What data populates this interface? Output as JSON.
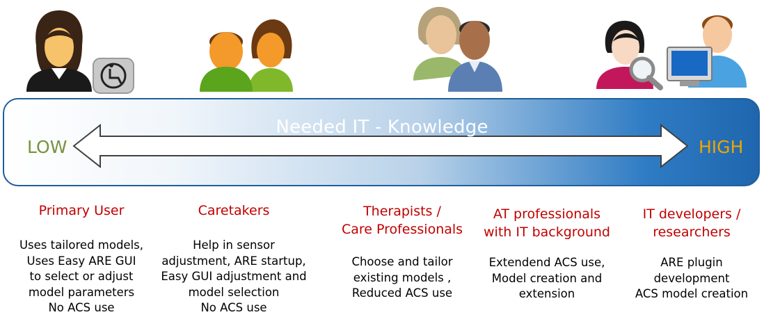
{
  "band": {
    "title": "Needed IT - Knowledge",
    "low_label": "LOW",
    "high_label": "HIGH",
    "colors": {
      "low": "#77933c",
      "high": "#f0a500",
      "border": "#1f5f9c"
    }
  },
  "groups": [
    {
      "title_lines": [
        "Primary User"
      ],
      "desc_lines": [
        "Uses tailored models,",
        "Uses Easy ARE GUI",
        "to select  or adjust",
        "model parameters",
        "No ACS use"
      ],
      "icon": "woman-wheelchair-icon"
    },
    {
      "title_lines": [
        "Caretakers"
      ],
      "desc_lines": [
        "Help in sensor",
        "adjustment, ARE startup,",
        "Easy GUI adjustment and",
        "model selection",
        "No ACS use"
      ],
      "icon": "two-people-icon"
    },
    {
      "title_lines": [
        "Therapists /",
        "Care Professionals"
      ],
      "desc_lines": [
        "Choose and tailor",
        "existing  models ,",
        "Reduced ACS use"
      ],
      "icon": "professionals-icon"
    },
    {
      "title_lines": [
        "AT professionals",
        "with IT background"
      ],
      "desc_lines": [
        "Extendend ACS use,",
        "Model creation and",
        "extension"
      ],
      "icon": "magnifier-user-icon"
    },
    {
      "title_lines": [
        "IT developers /",
        "researchers"
      ],
      "desc_lines": [
        "ARE plugin",
        "development",
        "ACS model creation"
      ],
      "icon": "computer-user-icon"
    }
  ]
}
